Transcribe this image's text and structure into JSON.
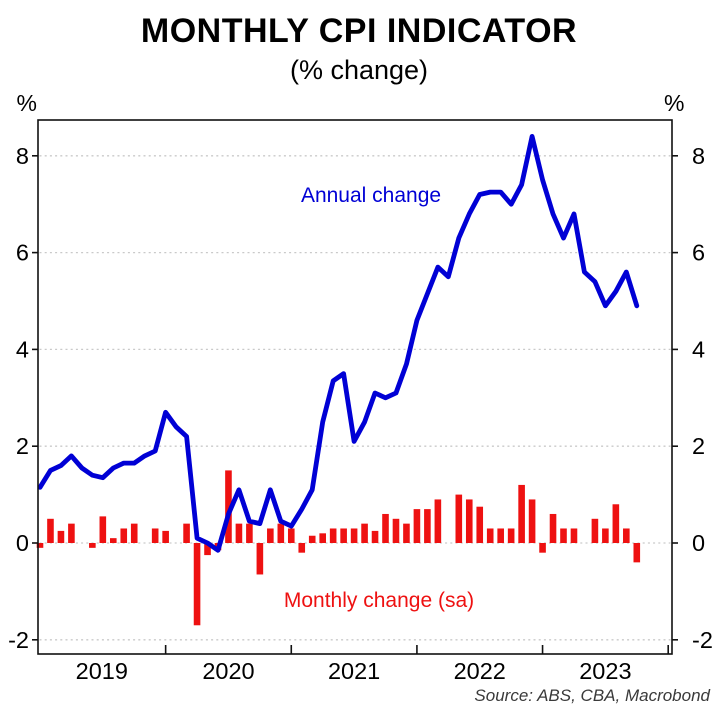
{
  "header": {
    "title": "MONTHLY CPI INDICATOR",
    "subtitle": "(% change)"
  },
  "axes": {
    "y_unit_left": "%",
    "y_unit_right": "%",
    "y_ticks": [
      8,
      6,
      4,
      2,
      0,
      -2
    ],
    "x_labels": [
      "2019",
      "2020",
      "2021",
      "2022",
      "2023"
    ]
  },
  "annotations": {
    "line_label": "Annual change",
    "bar_label": "Monthly change (sa)",
    "source": "Source: ABS, CBA, Macrobond"
  },
  "colors": {
    "line": "#0000d5",
    "bar": "#ee1111",
    "grid": "#c9c9c9",
    "axis": "#111111"
  },
  "chart_data": {
    "type": "line+bar",
    "title": "MONTHLY CPI INDICATOR",
    "subtitle": "(% change)",
    "xlabel": "",
    "ylabel": "%",
    "ylim": [
      -2.3,
      8.72
    ],
    "grid": "dotted-horizontal",
    "legend": "inline-annotations",
    "x": [
      "2019-01",
      "2019-02",
      "2019-03",
      "2019-04",
      "2019-05",
      "2019-06",
      "2019-07",
      "2019-08",
      "2019-09",
      "2019-10",
      "2019-11",
      "2019-12",
      "2020-01",
      "2020-02",
      "2020-03",
      "2020-04",
      "2020-05",
      "2020-06",
      "2020-07",
      "2020-08",
      "2020-09",
      "2020-10",
      "2020-11",
      "2020-12",
      "2021-01",
      "2021-02",
      "2021-03",
      "2021-04",
      "2021-05",
      "2021-06",
      "2021-07",
      "2021-08",
      "2021-09",
      "2021-10",
      "2021-11",
      "2021-12",
      "2022-01",
      "2022-02",
      "2022-03",
      "2022-04",
      "2022-05",
      "2022-06",
      "2022-07",
      "2022-08",
      "2022-09",
      "2022-10",
      "2022-11",
      "2022-12",
      "2023-01",
      "2023-02",
      "2023-03",
      "2023-04",
      "2023-05",
      "2023-06",
      "2023-07",
      "2023-08",
      "2023-09",
      "2023-10"
    ],
    "series": [
      {
        "name": "Annual change",
        "type": "line",
        "values": [
          1.15,
          1.5,
          1.6,
          1.8,
          1.55,
          1.4,
          1.35,
          1.55,
          1.65,
          1.65,
          1.8,
          1.9,
          2.7,
          2.4,
          2.2,
          0.1,
          0.0,
          -0.15,
          0.6,
          1.1,
          0.45,
          0.4,
          1.1,
          0.45,
          0.35,
          0.7,
          1.1,
          2.5,
          3.35,
          3.5,
          2.1,
          2.5,
          3.1,
          3.0,
          3.1,
          3.7,
          4.6,
          5.15,
          5.7,
          5.5,
          6.3,
          6.8,
          7.2,
          7.25,
          7.25,
          7.0,
          7.4,
          8.4,
          7.5,
          6.8,
          6.3,
          6.8,
          5.6,
          5.4,
          4.9,
          5.2,
          5.6,
          4.9
        ]
      },
      {
        "name": "Monthly change (sa)",
        "type": "bar",
        "values": [
          -0.1,
          0.5,
          0.25,
          0.4,
          0.0,
          -0.1,
          0.55,
          0.1,
          0.3,
          0.4,
          0.0,
          0.3,
          0.25,
          0.0,
          0.4,
          -1.7,
          -0.25,
          -0.15,
          1.5,
          0.4,
          0.4,
          -0.65,
          0.3,
          0.4,
          0.3,
          -0.2,
          0.15,
          0.2,
          0.3,
          0.3,
          0.3,
          0.4,
          0.25,
          0.6,
          0.5,
          0.4,
          0.7,
          0.7,
          0.9,
          0.0,
          1.0,
          0.9,
          0.75,
          0.3,
          0.3,
          0.3,
          1.2,
          0.9,
          -0.2,
          0.6,
          0.3,
          0.3,
          0.0,
          0.5,
          0.3,
          0.8,
          0.3,
          -0.4
        ]
      }
    ]
  }
}
